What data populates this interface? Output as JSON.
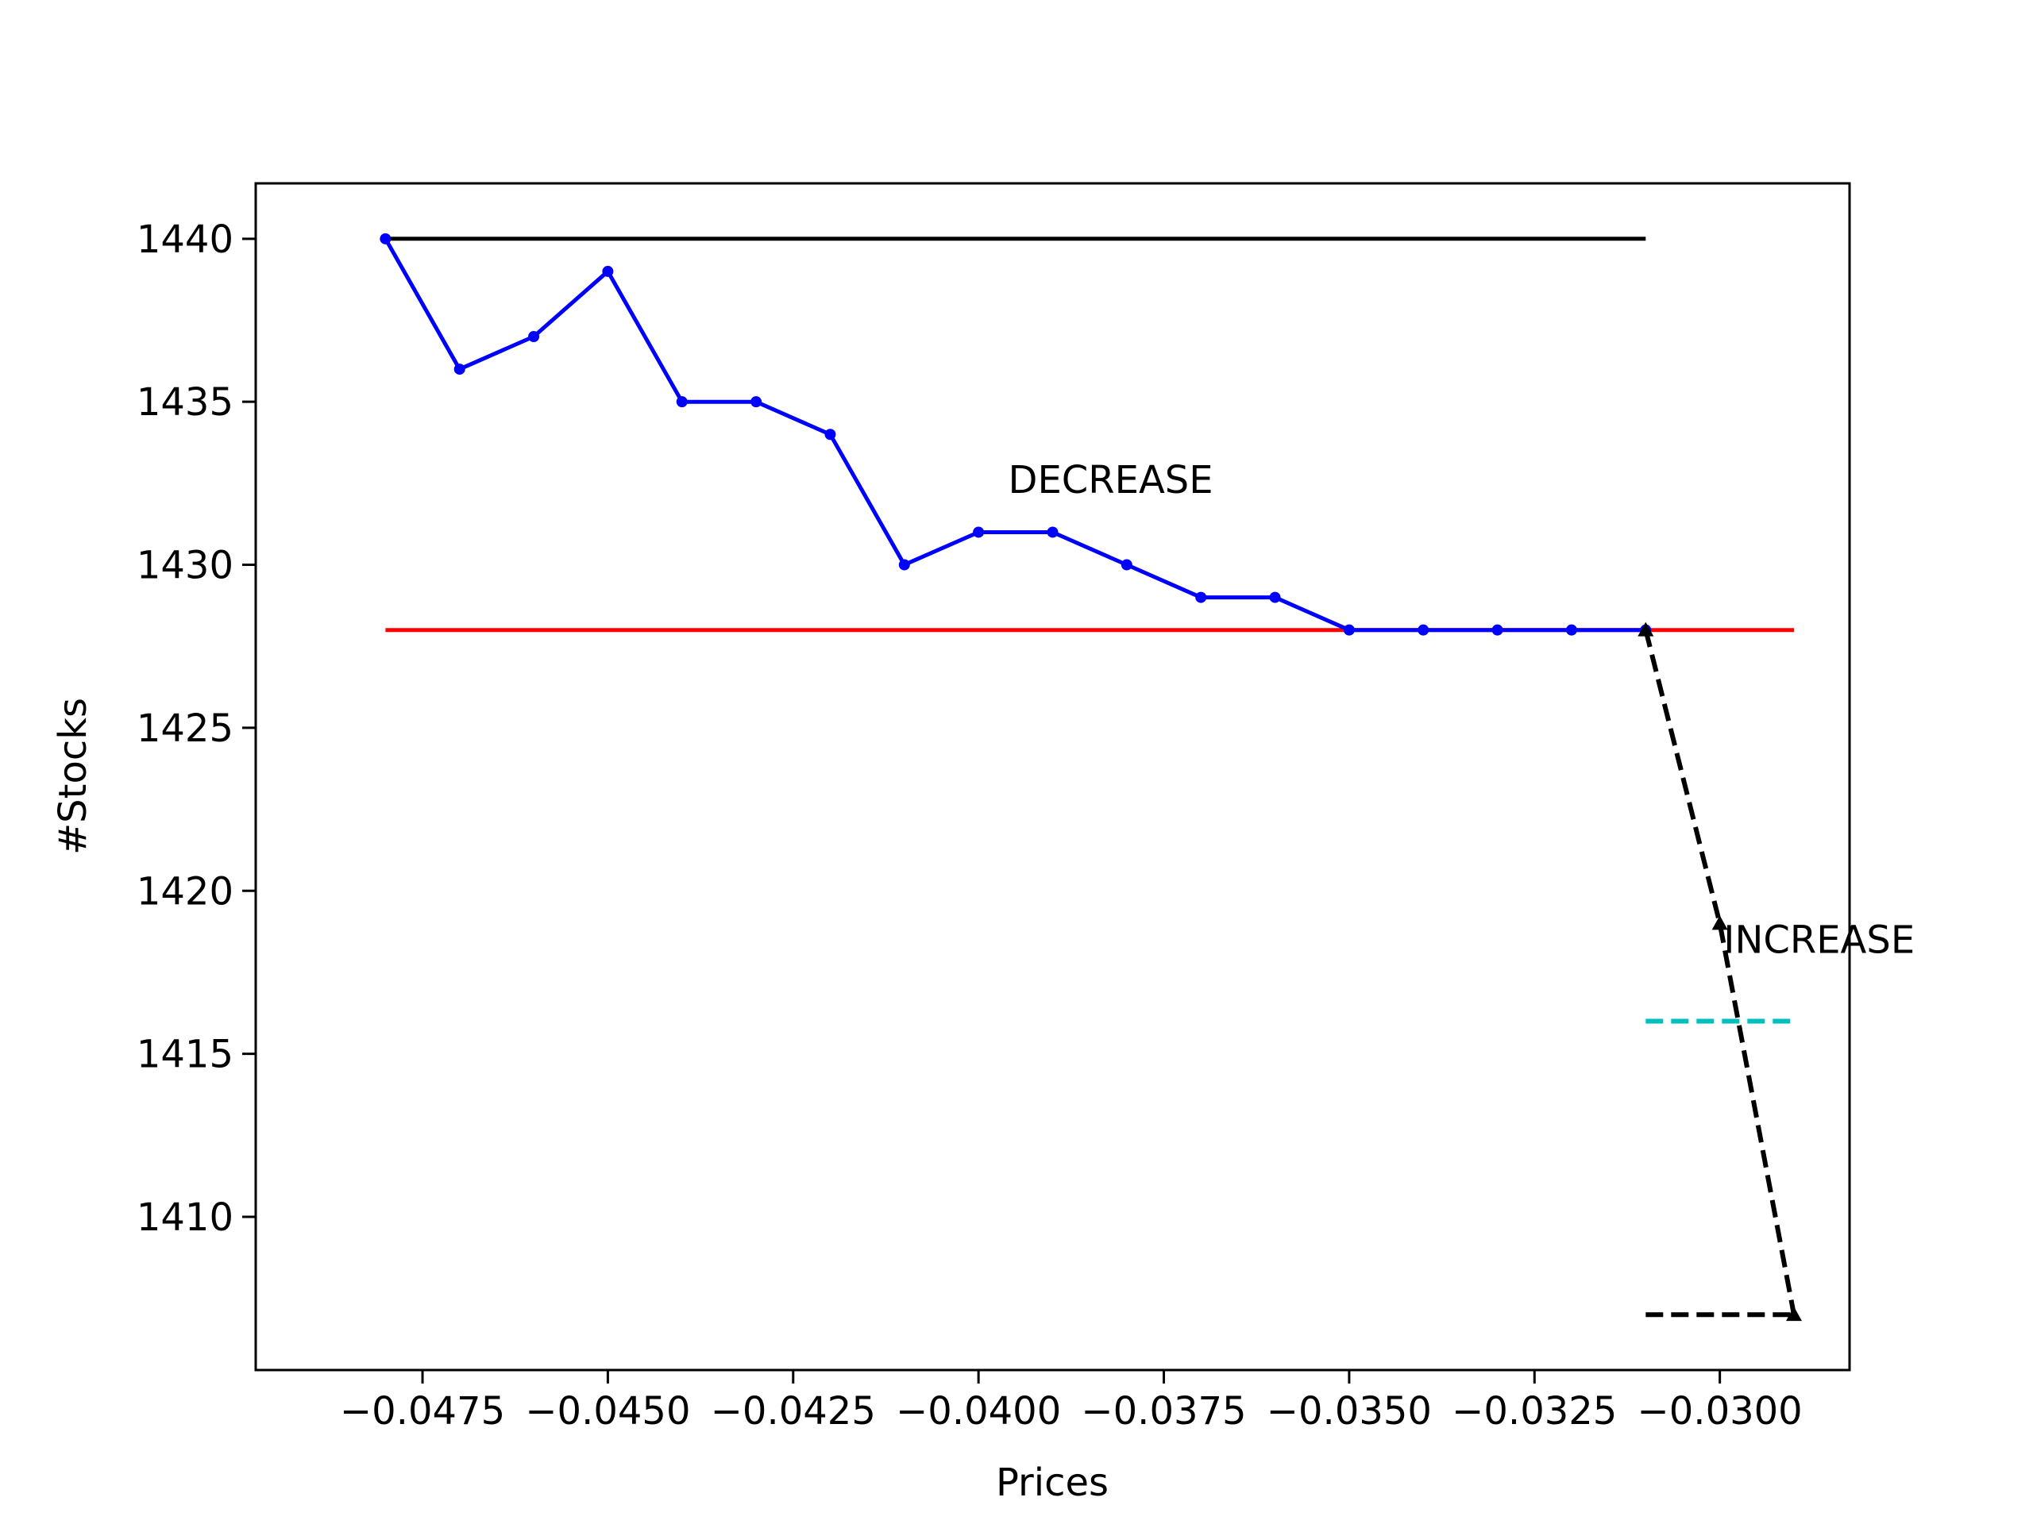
{
  "chart_data": {
    "type": "line",
    "title": "",
    "xlabel": "Prices",
    "ylabel": "#Stocks",
    "xlim": [
      -0.04975,
      -0.02825
    ],
    "ylim": [
      1405.3,
      1441.7
    ],
    "xticks": [
      -0.0475,
      -0.045,
      -0.0425,
      -0.04,
      -0.0375,
      -0.035,
      -0.0325,
      -0.03
    ],
    "xtick_labels": [
      "−0.0475",
      "−0.0450",
      "−0.0425",
      "−0.0400",
      "−0.0375",
      "−0.0350",
      "−0.0325",
      "−0.0300"
    ],
    "yticks": [
      1410,
      1415,
      1420,
      1425,
      1430,
      1435,
      1440
    ],
    "ytick_labels": [
      "1410",
      "1415",
      "1420",
      "1425",
      "1430",
      "1435",
      "1440"
    ],
    "grid": false,
    "legend": "none",
    "series": [
      {
        "color": "#000000",
        "style": "solid",
        "marker": "none",
        "x": [
          -0.048,
          -0.031
        ],
        "y": [
          1440,
          1440
        ]
      },
      {
        "color": "#ff0000",
        "style": "solid",
        "marker": "none",
        "x": [
          -0.048,
          -0.029
        ],
        "y": [
          1428,
          1428
        ]
      },
      {
        "color": "#0000ff",
        "style": "solid",
        "marker": "dot",
        "x": [
          -0.048,
          -0.047,
          -0.046,
          -0.045,
          -0.044,
          -0.043,
          -0.042,
          -0.041,
          -0.04,
          -0.039,
          -0.038,
          -0.037,
          -0.036,
          -0.035,
          -0.034,
          -0.033,
          -0.032,
          -0.031
        ],
        "y": [
          1440,
          1436,
          1437,
          1439,
          1435,
          1435,
          1434,
          1430,
          1431,
          1431,
          1430,
          1429,
          1429,
          1428,
          1428,
          1428,
          1428,
          1428
        ]
      },
      {
        "color": "#000000",
        "style": "dashed",
        "marker": "triangle",
        "x": [
          -0.031,
          -0.03,
          -0.029
        ],
        "y": [
          1428,
          1419,
          1407
        ]
      },
      {
        "color": "#00bfbf",
        "style": "dashed",
        "marker": "none",
        "x": [
          -0.031,
          -0.029
        ],
        "y": [
          1416,
          1416
        ]
      },
      {
        "color": "#000000",
        "style": "dashed",
        "marker": "none",
        "x": [
          -0.031,
          -0.029
        ],
        "y": [
          1407,
          1407
        ]
      }
    ],
    "annotations": [
      {
        "text": "DECREASE",
        "x": -0.0396,
        "y": 1432.2
      },
      {
        "text": "INCREASE",
        "x": -0.02995,
        "y": 1418.1
      }
    ]
  }
}
